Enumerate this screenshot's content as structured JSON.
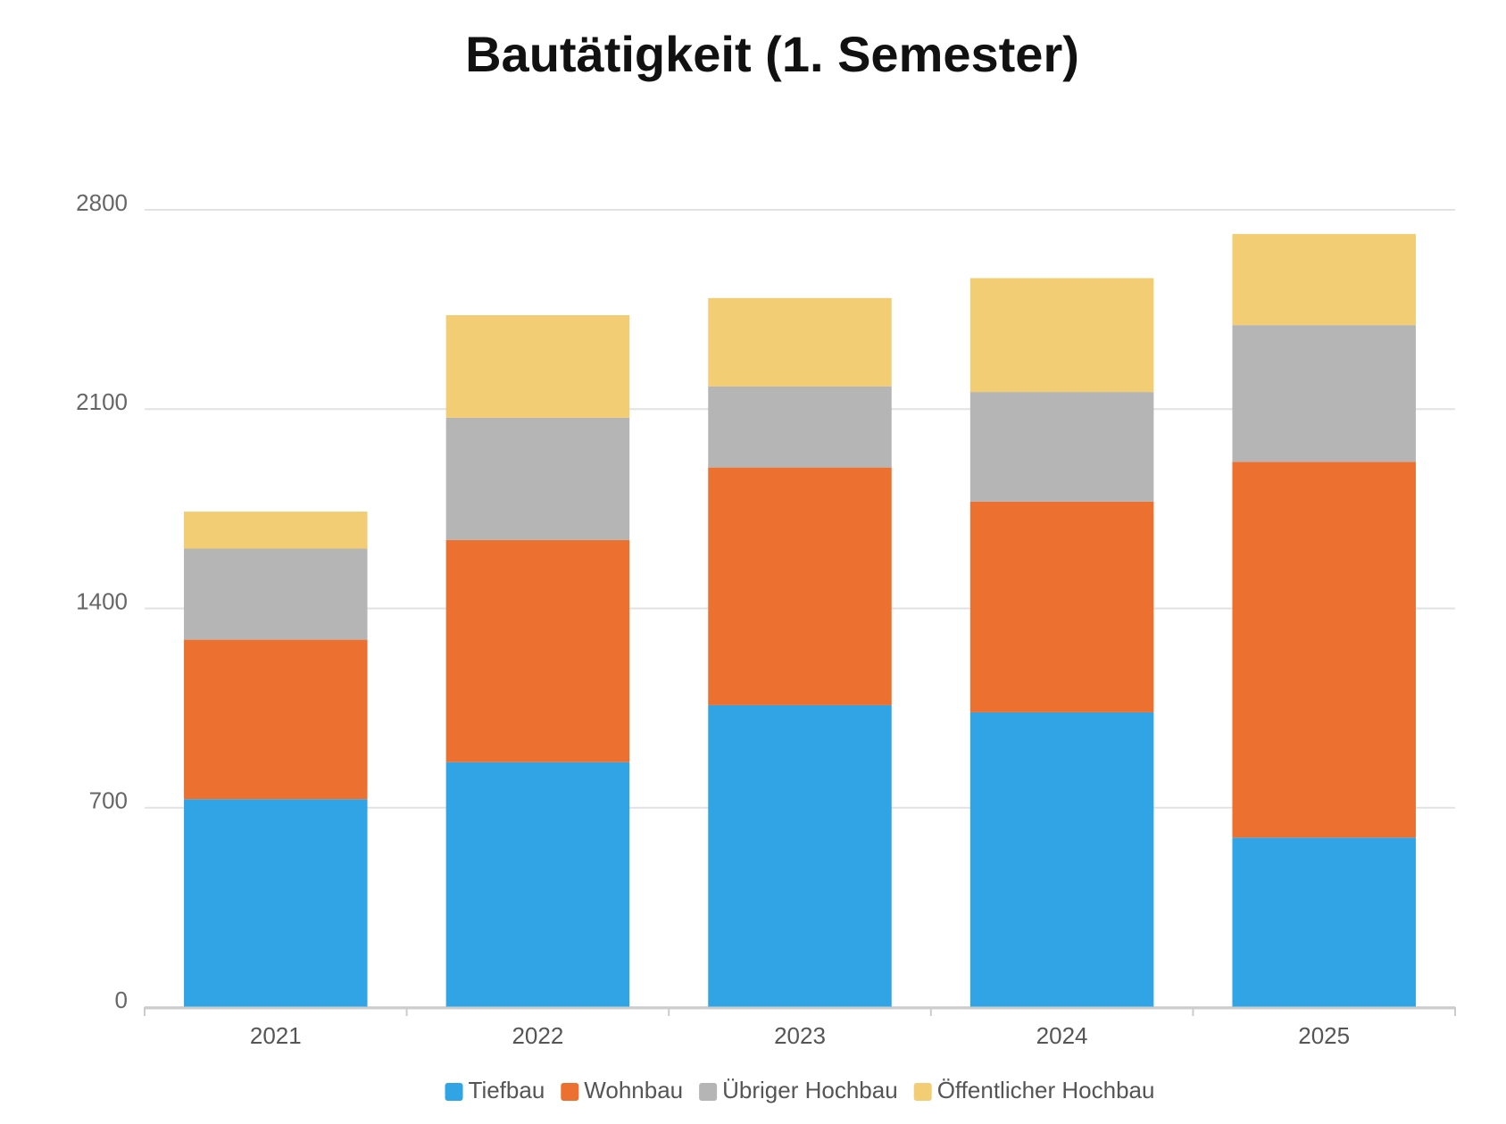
{
  "chart_data": {
    "type": "stacked_bar",
    "title": "Bautätigkeit (1. Semester)",
    "categories": [
      "2021",
      "2022",
      "2023",
      "2024",
      "2025"
    ],
    "series": [
      {
        "name": "Tiefbau",
        "color": "#31a4e6",
        "values": [
          730,
          860,
          1060,
          1035,
          595
        ]
      },
      {
        "name": "Wohnbau",
        "color": "#ec7130",
        "values": [
          560,
          780,
          835,
          740,
          1320
        ]
      },
      {
        "name": "Übriger Hochbau",
        "color": "#b5b5b5",
        "values": [
          320,
          430,
          285,
          385,
          480
        ]
      },
      {
        "name": "Öffentlicher Hochbau",
        "color": "#f2cd73",
        "values": [
          130,
          360,
          310,
          400,
          320
        ]
      }
    ],
    "ylim": [
      0,
      2800
    ],
    "yticks": [
      0,
      700,
      1400,
      2100,
      2800
    ],
    "grid": true,
    "legend": "bottom"
  }
}
